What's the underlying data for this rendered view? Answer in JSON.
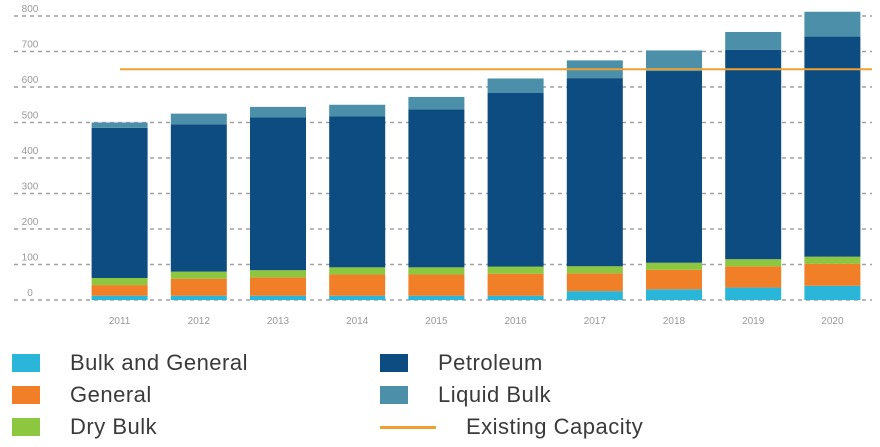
{
  "chart_data": {
    "type": "bar",
    "stacked": true,
    "categories": [
      "2011",
      "2012",
      "2013",
      "2014",
      "2015",
      "2016",
      "2017",
      "2018",
      "2019",
      "2020"
    ],
    "yticks": [
      "0",
      "100",
      "200",
      "300",
      "400",
      "500",
      "600",
      "700",
      "800"
    ],
    "ylim": [
      0,
      800
    ],
    "grid": true,
    "grid_style": "dashed",
    "legend_position": "bottom",
    "series": [
      {
        "name": "Bulk and General",
        "color": "#29b6d9",
        "values": [
          12,
          12,
          12,
          12,
          12,
          12,
          25,
          30,
          35,
          40
        ]
      },
      {
        "name": "General",
        "color": "#f07f28",
        "values": [
          30,
          48,
          52,
          60,
          60,
          62,
          50,
          55,
          60,
          62
        ]
      },
      {
        "name": "Dry Bulk",
        "color": "#8dc63f",
        "values": [
          20,
          20,
          20,
          20,
          20,
          20,
          20,
          20,
          20,
          20
        ]
      },
      {
        "name": "Petroleum",
        "color": "#0d4c80",
        "values": [
          423,
          415,
          430,
          425,
          445,
          490,
          530,
          540,
          590,
          620
        ]
      },
      {
        "name": "Liquid Bulk",
        "color": "#4b8fa8",
        "values": [
          15,
          30,
          30,
          33,
          35,
          40,
          50,
          58,
          50,
          70
        ]
      }
    ],
    "reference_lines": [
      {
        "name": "Existing Capacity",
        "color": "#f0a030",
        "value": 650
      }
    ]
  }
}
